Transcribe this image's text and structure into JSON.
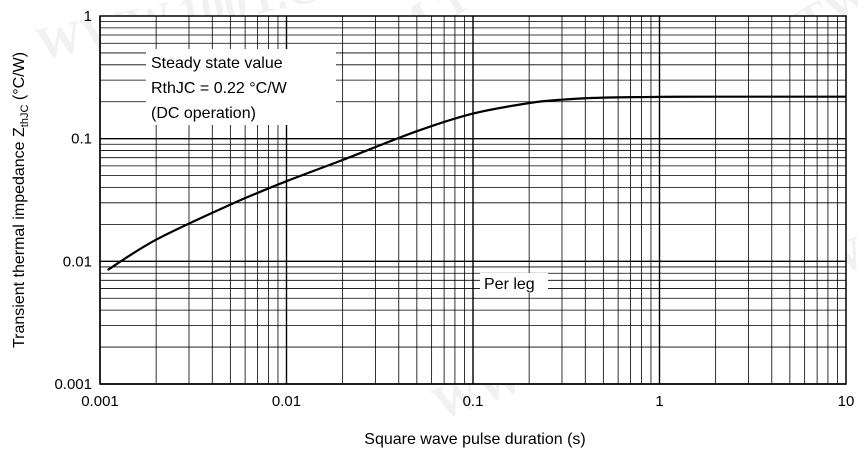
{
  "chart_data": {
    "type": "line",
    "xlabel": "Square wave pulse duration (s)",
    "ylabel_main": "Transient thermal impedance Z",
    "ylabel_sub": "thJC",
    "ylabel_unit": " (°C/W)",
    "x_scale": "log",
    "y_scale": "log",
    "xlim": [
      0.001,
      10
    ],
    "ylim": [
      0.001,
      1
    ],
    "grid": true,
    "x_ticks": [
      {
        "value": 0.001,
        "label": "0.001"
      },
      {
        "value": 0.01,
        "label": "0.01"
      },
      {
        "value": 0.1,
        "label": "0.1"
      },
      {
        "value": 1,
        "label": "1"
      },
      {
        "value": 10,
        "label": "10"
      }
    ],
    "y_ticks": [
      {
        "value": 0.001,
        "label": "0.001"
      },
      {
        "value": 0.01,
        "label": "0.01"
      },
      {
        "value": 0.1,
        "label": "0.1"
      },
      {
        "value": 1,
        "label": "1"
      }
    ],
    "series": [
      {
        "x": [
          0.0011,
          0.002,
          0.005,
          0.01,
          0.02,
          0.05,
          0.1,
          0.2,
          0.3,
          0.5,
          1,
          2,
          5,
          10
        ],
        "y": [
          0.0085,
          0.015,
          0.029,
          0.045,
          0.067,
          0.115,
          0.16,
          0.195,
          0.208,
          0.216,
          0.219,
          0.22,
          0.22,
          0.22
        ]
      }
    ],
    "annotations": [
      {
        "lines": [
          "Steady state value",
          "RthJC = 0.22 °C/W",
          "(DC operation)"
        ]
      },
      {
        "lines": [
          "Per leg"
        ]
      }
    ]
  },
  "watermark": "WWW.100Y.COM.TW"
}
